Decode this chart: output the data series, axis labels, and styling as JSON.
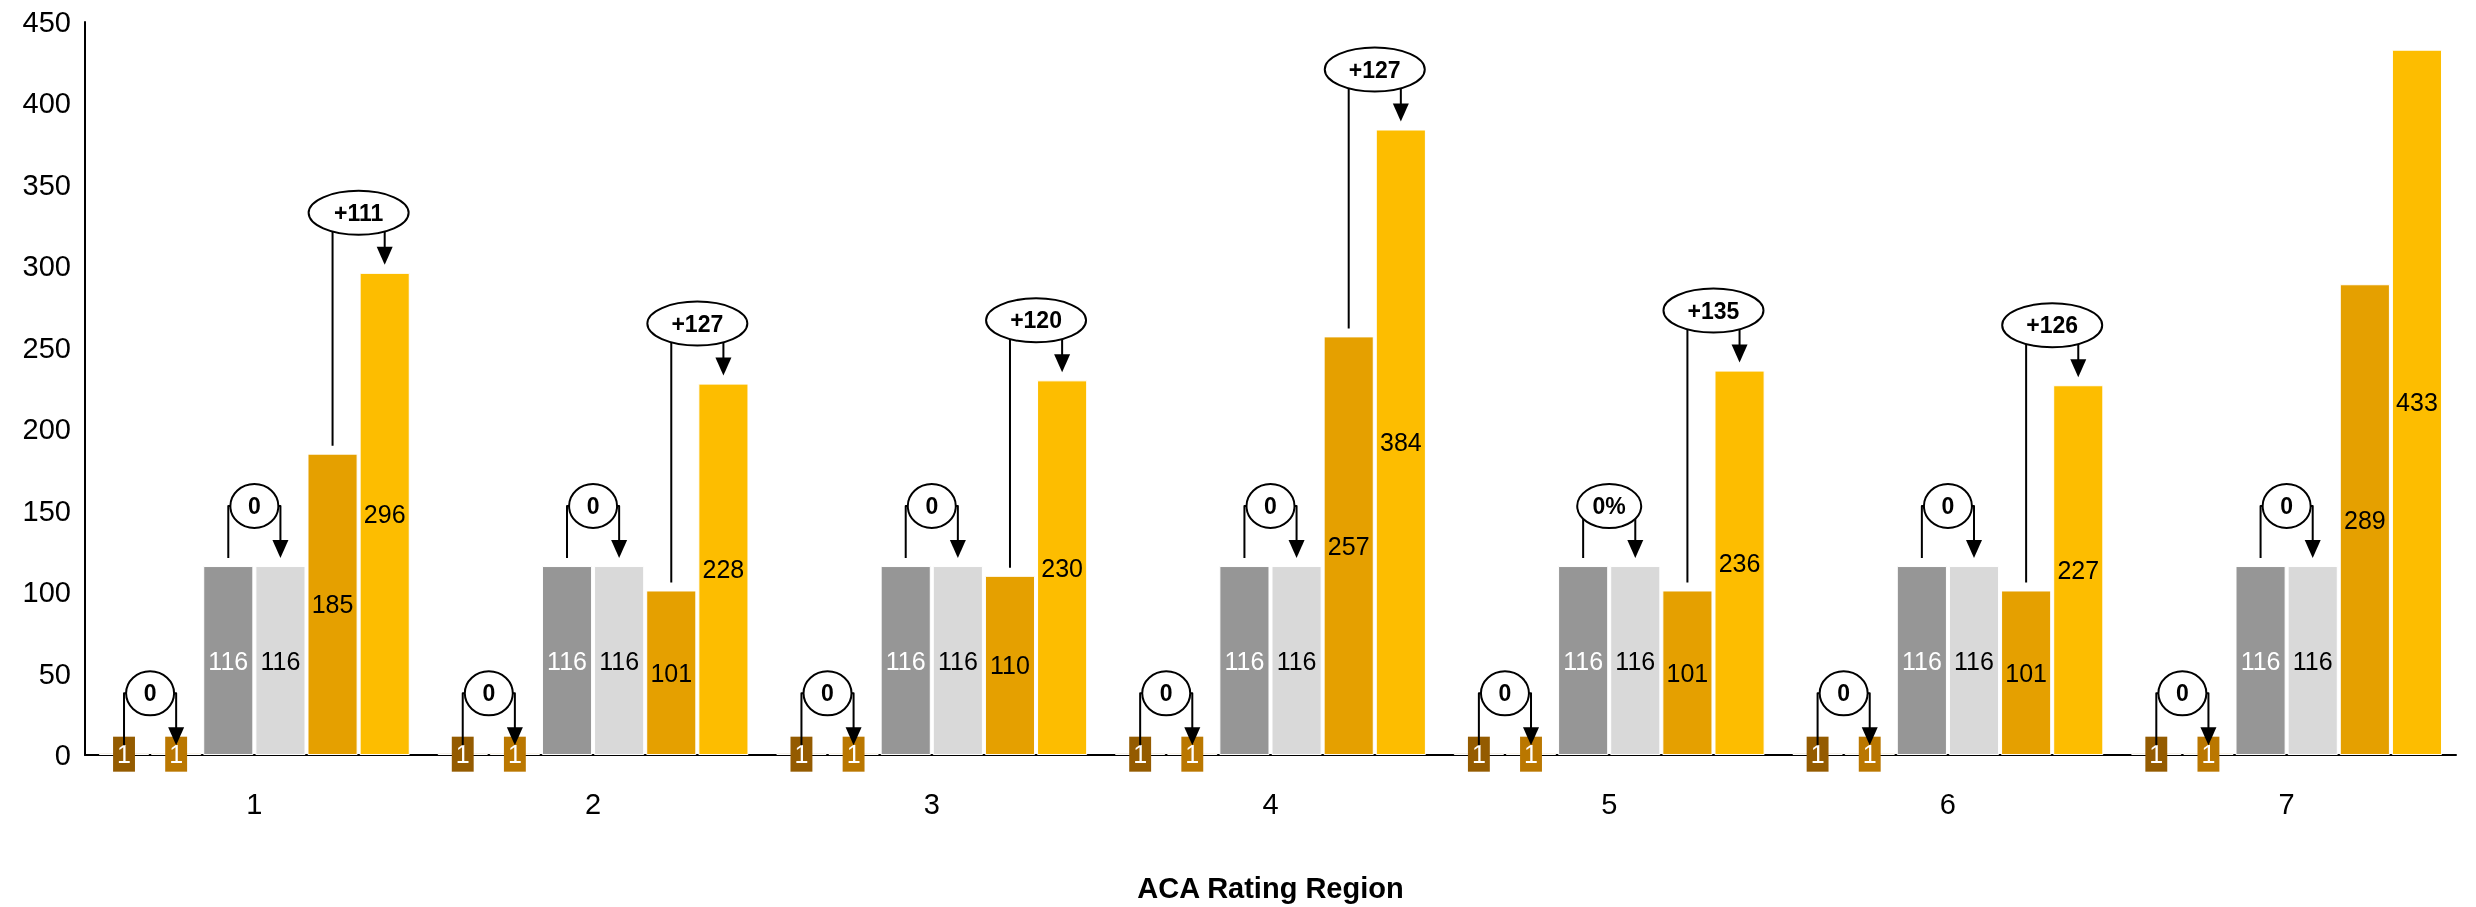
{
  "chart_data": {
    "type": "bar",
    "xlabel": "ACA Rating Region",
    "categories": [
      "1",
      "2",
      "3",
      "4",
      "5",
      "6",
      "7"
    ],
    "series": [
      {
        "color": "#945b00",
        "values": [
          1,
          1,
          1,
          1,
          1,
          1,
          1
        ]
      },
      {
        "color": "#ba7700",
        "values": [
          1,
          1,
          1,
          1,
          1,
          1,
          1
        ]
      },
      {
        "color": "#969696",
        "values": [
          116,
          116,
          116,
          116,
          116,
          116,
          116
        ]
      },
      {
        "color": "#d9d9d9",
        "values": [
          116,
          116,
          116,
          116,
          116,
          116,
          116
        ]
      },
      {
        "color": "#e5a000",
        "values": [
          185,
          101,
          110,
          257,
          101,
          101,
          289
        ]
      },
      {
        "color": "#fdbd00",
        "values": [
          296,
          228,
          230,
          384,
          236,
          227,
          433
        ]
      }
    ],
    "ylim": [
      0,
      450
    ],
    "yticks": [
      0,
      50,
      100,
      150,
      200,
      250,
      300,
      350,
      400,
      450
    ],
    "grid": false,
    "data_labels": true,
    "annotations": [
      "0",
      "0",
      "+111",
      "0",
      "0",
      "+127",
      "0",
      "0",
      "+120",
      "0",
      "0",
      "+127",
      "0",
      "0%",
      "+135",
      "0",
      "0",
      "+126",
      "0",
      "0"
    ]
  }
}
